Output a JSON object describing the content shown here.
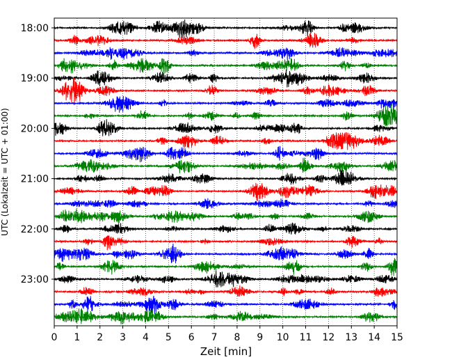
{
  "chart_data": {
    "type": "line",
    "title": "",
    "xlabel": "Zeit  [min]",
    "ylabel": "UTC (Lokalzeit = UTC + 01:00)",
    "xlim": [
      0,
      15
    ],
    "x_ticks": [
      "0",
      "1",
      "2",
      "3",
      "4",
      "5",
      "6",
      "7",
      "8",
      "9",
      "10",
      "11",
      "12",
      "13",
      "14",
      "15"
    ],
    "y_ticks": [
      "18:00",
      "19:00",
      "20:00",
      "21:00",
      "22:00",
      "23:00"
    ],
    "grid": "vertical dotted at each minute",
    "legend": "none",
    "trace_interval_min": 15,
    "trace_colors": [
      "#000000",
      "#ff0000",
      "#0000ff",
      "#008000"
    ],
    "traces": [
      {
        "start": "18:00",
        "color": "#000000"
      },
      {
        "start": "18:15",
        "color": "#ff0000"
      },
      {
        "start": "18:30",
        "color": "#0000ff"
      },
      {
        "start": "18:45",
        "color": "#008000"
      },
      {
        "start": "19:00",
        "color": "#000000"
      },
      {
        "start": "19:15",
        "color": "#ff0000"
      },
      {
        "start": "19:30",
        "color": "#0000ff"
      },
      {
        "start": "19:45",
        "color": "#008000"
      },
      {
        "start": "20:00",
        "color": "#000000"
      },
      {
        "start": "20:15",
        "color": "#ff0000"
      },
      {
        "start": "20:30",
        "color": "#0000ff"
      },
      {
        "start": "20:45",
        "color": "#008000"
      },
      {
        "start": "21:00",
        "color": "#000000"
      },
      {
        "start": "21:15",
        "color": "#ff0000"
      },
      {
        "start": "21:30",
        "color": "#0000ff"
      },
      {
        "start": "21:45",
        "color": "#008000"
      },
      {
        "start": "22:00",
        "color": "#000000"
      },
      {
        "start": "22:15",
        "color": "#ff0000"
      },
      {
        "start": "22:30",
        "color": "#0000ff"
      },
      {
        "start": "22:45",
        "color": "#008000"
      },
      {
        "start": "23:00",
        "color": "#000000"
      },
      {
        "start": "23:15",
        "color": "#ff0000"
      },
      {
        "start": "23:30",
        "color": "#0000ff"
      },
      {
        "start": "23:45",
        "color": "#008000"
      }
    ]
  }
}
